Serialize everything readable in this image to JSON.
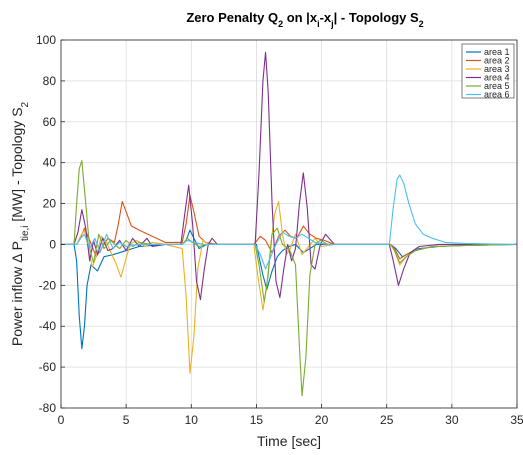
{
  "chart_data": {
    "type": "line",
    "title": {
      "base": "Zero Penalty Q",
      "base_sub": "2",
      "mid": " on |x",
      "mid_sub1": "i",
      "dash": "-x",
      "mid_sub2": "j",
      "end": "| - Topology S",
      "end_sub": "2"
    },
    "xlabel": "Time [sec]",
    "ylabel": {
      "a": "Power inflow Δ P",
      "a_sub": "tie,i",
      "b": " [MW] - Topology S",
      "b_sub": "2"
    },
    "xlim": [
      0,
      35
    ],
    "ylim": [
      -80,
      100
    ],
    "xticks": [
      0,
      5,
      10,
      15,
      20,
      25,
      30,
      35
    ],
    "yticks": [
      -80,
      -60,
      -40,
      -20,
      0,
      20,
      40,
      60,
      80,
      100
    ],
    "grid": true,
    "legend_position": "top-right",
    "series": [
      {
        "name": "area 1",
        "color": "#0072BD",
        "points": [
          [
            0,
            0
          ],
          [
            1.0,
            0
          ],
          [
            1.2,
            -8
          ],
          [
            1.4,
            -35
          ],
          [
            1.6,
            -51
          ],
          [
            1.8,
            -40
          ],
          [
            2.0,
            -20
          ],
          [
            2.3,
            -10
          ],
          [
            2.8,
            -13
          ],
          [
            3.3,
            -6
          ],
          [
            4,
            -5
          ],
          [
            5,
            -3
          ],
          [
            6,
            -1
          ],
          [
            8,
            0
          ],
          [
            9.3,
            0
          ],
          [
            9.6,
            2
          ],
          [
            9.9,
            7
          ],
          [
            10.2,
            3
          ],
          [
            10.6,
            -2
          ],
          [
            11.2,
            0
          ],
          [
            12,
            0
          ],
          [
            15,
            0
          ],
          [
            15.2,
            -6
          ],
          [
            15.5,
            -15
          ],
          [
            15.8,
            -22
          ],
          [
            16.2,
            -13
          ],
          [
            16.6,
            -6
          ],
          [
            17,
            -3
          ],
          [
            17.5,
            -1
          ],
          [
            18,
            0
          ],
          [
            18.6,
            -4
          ],
          [
            19.1,
            -2
          ],
          [
            19.6,
            0
          ],
          [
            21,
            0
          ],
          [
            24,
            0
          ],
          [
            25.3,
            0
          ],
          [
            25.7,
            -2
          ],
          [
            26.2,
            -6
          ],
          [
            26.8,
            -4
          ],
          [
            27.5,
            -2
          ],
          [
            29,
            -1
          ],
          [
            31,
            -0.5
          ],
          [
            35,
            0
          ]
        ]
      },
      {
        "name": "area 2",
        "color": "#D95319",
        "points": [
          [
            0,
            0
          ],
          [
            1.2,
            0
          ],
          [
            1.5,
            3
          ],
          [
            1.8,
            8
          ],
          [
            2.2,
            2
          ],
          [
            2.7,
            -6
          ],
          [
            3.1,
            -2
          ],
          [
            3.6,
            3
          ],
          [
            4.1,
            1
          ],
          [
            4.4,
            10
          ],
          [
            4.7,
            21
          ],
          [
            5.0,
            16
          ],
          [
            5.4,
            9
          ],
          [
            6,
            7
          ],
          [
            7,
            4
          ],
          [
            8,
            1
          ],
          [
            9.3,
            1
          ],
          [
            9.6,
            10
          ],
          [
            9.9,
            24
          ],
          [
            10.2,
            16
          ],
          [
            10.6,
            4
          ],
          [
            11.1,
            1
          ],
          [
            12,
            0
          ],
          [
            14.8,
            0
          ],
          [
            15.3,
            4
          ],
          [
            15.7,
            2
          ],
          [
            16.2,
            -4
          ],
          [
            16.7,
            4
          ],
          [
            17.2,
            7
          ],
          [
            17.6,
            4
          ],
          [
            18.1,
            3
          ],
          [
            18.6,
            9
          ],
          [
            19.1,
            5
          ],
          [
            19.6,
            3
          ],
          [
            20.2,
            2
          ],
          [
            21,
            0
          ],
          [
            24,
            0
          ],
          [
            25.3,
            0
          ],
          [
            25.6,
            -2
          ],
          [
            26.0,
            -7
          ],
          [
            26.5,
            -5
          ],
          [
            27.2,
            -3
          ],
          [
            28.5,
            -1
          ],
          [
            31,
            -0.5
          ],
          [
            35,
            0
          ]
        ]
      },
      {
        "name": "area 3",
        "color": "#EDB120",
        "points": [
          [
            0,
            0
          ],
          [
            1.2,
            0
          ],
          [
            1.5,
            4
          ],
          [
            1.8,
            7
          ],
          [
            2.1,
            -2
          ],
          [
            2.4,
            -11
          ],
          [
            2.7,
            -6
          ],
          [
            3.1,
            4
          ],
          [
            3.5,
            1
          ],
          [
            3.9,
            -5
          ],
          [
            4.2,
            -9
          ],
          [
            4.6,
            -16
          ],
          [
            4.9,
            -9
          ],
          [
            5.3,
            0
          ],
          [
            5.8,
            2
          ],
          [
            6.5,
            -1
          ],
          [
            7,
            1
          ],
          [
            8,
            0
          ],
          [
            9.3,
            -2
          ],
          [
            9.6,
            -25
          ],
          [
            9.9,
            -63
          ],
          [
            10.2,
            -45
          ],
          [
            10.5,
            -12
          ],
          [
            10.9,
            2
          ],
          [
            11.4,
            0
          ],
          [
            14.8,
            0
          ],
          [
            15.1,
            -15
          ],
          [
            15.5,
            -32
          ],
          [
            15.8,
            -20
          ],
          [
            16.1,
            0
          ],
          [
            16.4,
            15
          ],
          [
            16.7,
            21
          ],
          [
            17.0,
            5
          ],
          [
            17.3,
            -5
          ],
          [
            17.6,
            -2
          ],
          [
            18,
            5
          ],
          [
            18.5,
            -5
          ],
          [
            19,
            -1
          ],
          [
            19.5,
            3
          ],
          [
            20,
            -1
          ],
          [
            21,
            0
          ],
          [
            24,
            0
          ],
          [
            25.3,
            0
          ],
          [
            25.6,
            -3
          ],
          [
            26.0,
            -10
          ],
          [
            26.5,
            -6
          ],
          [
            27.2,
            -3
          ],
          [
            28.5,
            -1
          ],
          [
            31,
            -0.5
          ],
          [
            35,
            0
          ]
        ]
      },
      {
        "name": "area 4",
        "color": "#7E2F8E",
        "points": [
          [
            0,
            0
          ],
          [
            1.0,
            0
          ],
          [
            1.3,
            6
          ],
          [
            1.6,
            17
          ],
          [
            1.9,
            8
          ],
          [
            2.2,
            -8
          ],
          [
            2.5,
            2
          ],
          [
            2.8,
            -5
          ],
          [
            3.2,
            3
          ],
          [
            3.6,
            -3
          ],
          [
            4,
            -2
          ],
          [
            4.5,
            2
          ],
          [
            5,
            -3
          ],
          [
            5.5,
            3
          ],
          [
            6,
            -1
          ],
          [
            6.6,
            3
          ],
          [
            7,
            -1
          ],
          [
            8,
            0
          ],
          [
            9.2,
            0
          ],
          [
            9.5,
            15
          ],
          [
            9.8,
            29
          ],
          [
            10.1,
            10
          ],
          [
            10.4,
            -18
          ],
          [
            10.7,
            -27
          ],
          [
            11,
            -12
          ],
          [
            11.3,
            0
          ],
          [
            11.6,
            3
          ],
          [
            12,
            0
          ],
          [
            13.5,
            0
          ],
          [
            14.9,
            0
          ],
          [
            15.2,
            35
          ],
          [
            15.5,
            80
          ],
          [
            15.7,
            94
          ],
          [
            15.9,
            75
          ],
          [
            16.2,
            20
          ],
          [
            16.5,
            -18
          ],
          [
            16.8,
            -26
          ],
          [
            17.1,
            -12
          ],
          [
            17.4,
            0
          ],
          [
            17.7,
            -8
          ],
          [
            18.0,
            -2
          ],
          [
            18.3,
            20
          ],
          [
            18.6,
            35
          ],
          [
            18.9,
            18
          ],
          [
            19.2,
            -10
          ],
          [
            19.5,
            -12
          ],
          [
            19.9,
            0
          ],
          [
            20.3,
            5
          ],
          [
            21,
            0
          ],
          [
            24,
            0
          ],
          [
            25.2,
            0
          ],
          [
            25.5,
            -8
          ],
          [
            25.9,
            -20
          ],
          [
            26.3,
            -12
          ],
          [
            26.8,
            -4
          ],
          [
            27.5,
            -1
          ],
          [
            29,
            0
          ],
          [
            35,
            0
          ]
        ]
      },
      {
        "name": "area 5",
        "color": "#77AC30",
        "points": [
          [
            0,
            0
          ],
          [
            1.0,
            0
          ],
          [
            1.2,
            20
          ],
          [
            1.4,
            37
          ],
          [
            1.6,
            41
          ],
          [
            1.9,
            20
          ],
          [
            2.2,
            -2
          ],
          [
            2.5,
            -9
          ],
          [
            2.9,
            5
          ],
          [
            3.3,
            -2
          ],
          [
            3.8,
            2
          ],
          [
            4.5,
            -2
          ],
          [
            5,
            2
          ],
          [
            5.5,
            -1
          ],
          [
            6,
            1
          ],
          [
            7,
            0
          ],
          [
            9.3,
            0
          ],
          [
            9.7,
            3
          ],
          [
            10.1,
            1
          ],
          [
            10.6,
            -1
          ],
          [
            11.2,
            0
          ],
          [
            14.9,
            0
          ],
          [
            15.2,
            -10
          ],
          [
            15.6,
            -28
          ],
          [
            15.9,
            -15
          ],
          [
            16.2,
            5
          ],
          [
            16.6,
            8
          ],
          [
            17.0,
            0
          ],
          [
            17.5,
            -2
          ],
          [
            18.0,
            -10
          ],
          [
            18.3,
            -50
          ],
          [
            18.5,
            -74
          ],
          [
            18.8,
            -55
          ],
          [
            19.1,
            -15
          ],
          [
            19.5,
            0
          ],
          [
            19.9,
            2
          ],
          [
            20.5,
            0
          ],
          [
            24,
            0
          ],
          [
            25.3,
            0
          ],
          [
            25.6,
            -3
          ],
          [
            26.0,
            -9
          ],
          [
            26.5,
            -6
          ],
          [
            27.2,
            -3
          ],
          [
            28.5,
            -1
          ],
          [
            31,
            -0.5
          ],
          [
            35,
            0
          ]
        ]
      },
      {
        "name": "area 6",
        "color": "#4DBEEE",
        "points": [
          [
            0,
            0
          ],
          [
            1.2,
            0
          ],
          [
            1.5,
            3
          ],
          [
            1.8,
            5
          ],
          [
            2.2,
            -2
          ],
          [
            2.6,
            3
          ],
          [
            3,
            -4
          ],
          [
            3.5,
            5
          ],
          [
            4,
            -2
          ],
          [
            4.5,
            1
          ],
          [
            5,
            -1
          ],
          [
            6,
            0
          ],
          [
            9.3,
            0
          ],
          [
            9.7,
            2
          ],
          [
            10.2,
            1
          ],
          [
            11,
            0
          ],
          [
            14.9,
            0
          ],
          [
            15.3,
            -5
          ],
          [
            15.7,
            -12
          ],
          [
            16.1,
            -6
          ],
          [
            16.5,
            0
          ],
          [
            17.0,
            6
          ],
          [
            17.5,
            4
          ],
          [
            18.0,
            3
          ],
          [
            18.5,
            5
          ],
          [
            19.0,
            3
          ],
          [
            19.5,
            1
          ],
          [
            20.5,
            0
          ],
          [
            24,
            0
          ],
          [
            25.2,
            0
          ],
          [
            25.5,
            18
          ],
          [
            25.8,
            32
          ],
          [
            26.0,
            34
          ],
          [
            26.3,
            30
          ],
          [
            26.7,
            20
          ],
          [
            27.2,
            10
          ],
          [
            27.8,
            5
          ],
          [
            28.5,
            3
          ],
          [
            29.5,
            1
          ],
          [
            31,
            0.5
          ],
          [
            35,
            0
          ]
        ]
      }
    ]
  }
}
